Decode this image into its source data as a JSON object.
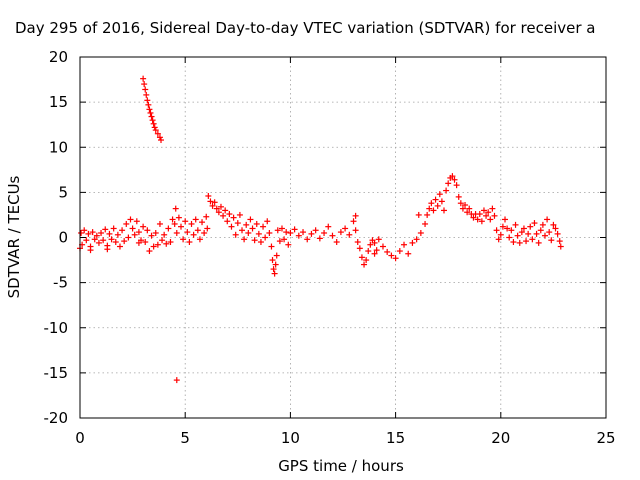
{
  "chart_data": {
    "type": "scatter",
    "title": "Day 295 of 2016, Sidereal Day-to-day VTEC variation (SDTVAR) for receiver a",
    "xlabel": "GPS time / hours",
    "ylabel": "SDTVAR / TECUs",
    "xlim": [
      0,
      25
    ],
    "ylim": [
      -20,
      20
    ],
    "xticks": [
      0,
      5,
      10,
      15,
      20,
      25
    ],
    "yticks": [
      -20,
      -15,
      -10,
      -5,
      0,
      5,
      10,
      15,
      20
    ],
    "xtick_labels": [
      "0",
      "5",
      "10",
      "15",
      "20",
      "25"
    ],
    "ytick_labels": [
      "-20",
      "-15",
      "-10",
      "-5",
      "0",
      "5",
      "10",
      "15",
      "20"
    ],
    "grid": true,
    "marker": "+",
    "series_color": "#ff0000",
    "series": [
      {
        "points": [
          [
            0.0,
            -1.2
          ],
          [
            0.05,
            0.5
          ],
          [
            0.1,
            -0.8
          ],
          [
            0.2,
            0.8
          ],
          [
            0.3,
            -0.3
          ],
          [
            0.4,
            0.4
          ],
          [
            0.5,
            -1.0
          ],
          [
            0.6,
            0.6
          ],
          [
            0.7,
            -0.2
          ],
          [
            0.8,
            0.2
          ],
          [
            0.9,
            -0.6
          ],
          [
            1.0,
            0.5
          ],
          [
            1.1,
            -0.3
          ],
          [
            1.2,
            0.9
          ],
          [
            1.3,
            -0.9
          ],
          [
            1.4,
            0.4
          ],
          [
            1.5,
            -0.2
          ],
          [
            1.6,
            1.0
          ],
          [
            1.7,
            -0.5
          ],
          [
            1.8,
            0.3
          ],
          [
            1.9,
            -1.0
          ],
          [
            2.0,
            0.8
          ],
          [
            2.1,
            -0.4
          ],
          [
            2.2,
            1.5
          ],
          [
            2.3,
            0.0
          ],
          [
            2.4,
            2.0
          ],
          [
            2.5,
            1.0
          ],
          [
            2.6,
            0.3
          ],
          [
            2.7,
            1.8
          ],
          [
            2.8,
            0.6
          ],
          [
            2.9,
            -0.3
          ],
          [
            3.0,
            1.2
          ],
          [
            3.1,
            -0.5
          ],
          [
            3.2,
            0.8
          ],
          [
            3.3,
            -1.5
          ],
          [
            3.4,
            0.2
          ],
          [
            3.5,
            -1.0
          ],
          [
            3.6,
            0.5
          ],
          [
            3.7,
            -0.8
          ],
          [
            3.8,
            1.5
          ],
          [
            3.9,
            -0.3
          ],
          [
            4.0,
            0.3
          ],
          [
            4.1,
            -0.7
          ],
          [
            4.2,
            1.0
          ],
          [
            4.3,
            -0.5
          ],
          [
            4.4,
            2.0
          ],
          [
            4.5,
            1.5
          ],
          [
            4.6,
            0.5
          ],
          [
            4.7,
            2.2
          ],
          [
            4.8,
            1.2
          ],
          [
            4.9,
            -0.2
          ],
          [
            5.0,
            1.8
          ],
          [
            5.1,
            0.6
          ],
          [
            5.2,
            -0.5
          ],
          [
            5.3,
            1.5
          ],
          [
            5.4,
            0.3
          ],
          [
            5.5,
            2.0
          ],
          [
            5.6,
            0.8
          ],
          [
            5.7,
            -0.2
          ],
          [
            5.8,
            1.7
          ],
          [
            5.9,
            0.5
          ],
          [
            6.0,
            2.3
          ],
          [
            6.05,
            1.0
          ],
          [
            6.1,
            4.6
          ],
          [
            6.2,
            4.0
          ],
          [
            6.3,
            3.5
          ],
          [
            6.4,
            3.9
          ],
          [
            6.5,
            3.2
          ],
          [
            6.6,
            2.8
          ],
          [
            6.7,
            3.4
          ],
          [
            6.8,
            2.4
          ],
          [
            6.9,
            3.0
          ],
          [
            7.0,
            1.8
          ],
          [
            7.1,
            2.6
          ],
          [
            7.2,
            1.2
          ],
          [
            7.3,
            2.2
          ],
          [
            7.4,
            0.3
          ],
          [
            7.5,
            1.6
          ],
          [
            7.6,
            2.5
          ],
          [
            7.7,
            0.8
          ],
          [
            7.8,
            -0.2
          ],
          [
            7.9,
            1.4
          ],
          [
            8.0,
            0.5
          ],
          [
            8.1,
            2.0
          ],
          [
            8.2,
            1.0
          ],
          [
            8.3,
            -0.3
          ],
          [
            8.4,
            1.5
          ],
          [
            8.5,
            0.4
          ],
          [
            8.6,
            -0.5
          ],
          [
            8.7,
            1.2
          ],
          [
            8.8,
            0.0
          ],
          [
            8.9,
            1.8
          ],
          [
            9.0,
            0.5
          ],
          [
            9.1,
            -1.0
          ],
          [
            9.15,
            -2.5
          ],
          [
            9.2,
            -3.5
          ],
          [
            9.25,
            -4.0
          ],
          [
            9.3,
            -3.0
          ],
          [
            9.35,
            -2.0
          ],
          [
            9.4,
            0.8
          ],
          [
            9.5,
            -0.4
          ],
          [
            9.6,
            1.0
          ],
          [
            9.7,
            -0.2
          ],
          [
            9.8,
            0.6
          ],
          [
            9.9,
            -0.8
          ],
          [
            10.0,
            0.5
          ],
          [
            10.2,
            0.9
          ],
          [
            10.4,
            0.2
          ],
          [
            10.6,
            0.6
          ],
          [
            10.8,
            -0.2
          ],
          [
            11.0,
            0.4
          ],
          [
            11.2,
            0.8
          ],
          [
            11.4,
            -0.1
          ],
          [
            11.6,
            0.5
          ],
          [
            11.8,
            1.2
          ],
          [
            12.0,
            0.2
          ],
          [
            12.2,
            -0.5
          ],
          [
            12.4,
            0.6
          ],
          [
            12.6,
            1.0
          ],
          [
            12.8,
            0.3
          ],
          [
            13.0,
            1.8
          ],
          [
            13.1,
            0.8
          ],
          [
            13.2,
            -0.5
          ],
          [
            13.3,
            -1.2
          ],
          [
            13.4,
            -2.2
          ],
          [
            13.5,
            -3.0
          ],
          [
            13.6,
            -2.5
          ],
          [
            13.7,
            -1.5
          ],
          [
            13.8,
            -0.8
          ],
          [
            13.9,
            -0.3
          ],
          [
            14.0,
            -0.6
          ],
          [
            14.1,
            -1.4
          ],
          [
            14.2,
            -0.2
          ],
          [
            14.4,
            -1.0
          ],
          [
            14.6,
            -1.6
          ],
          [
            14.8,
            -2.0
          ],
          [
            15.0,
            -2.3
          ],
          [
            15.2,
            -1.5
          ],
          [
            15.4,
            -0.8
          ],
          [
            15.6,
            -1.8
          ],
          [
            15.8,
            -0.6
          ],
          [
            16.0,
            -0.2
          ],
          [
            16.2,
            0.5
          ],
          [
            16.4,
            1.5
          ],
          [
            16.5,
            2.5
          ],
          [
            16.6,
            3.2
          ],
          [
            16.7,
            3.8
          ],
          [
            16.8,
            3.0
          ],
          [
            16.9,
            4.2
          ],
          [
            17.0,
            3.5
          ],
          [
            17.1,
            4.8
          ],
          [
            17.2,
            4.0
          ],
          [
            17.3,
            3.0
          ],
          [
            17.4,
            5.2
          ],
          [
            17.5,
            6.0
          ],
          [
            17.6,
            6.6
          ],
          [
            17.7,
            6.8
          ],
          [
            17.8,
            6.4
          ],
          [
            17.9,
            5.8
          ],
          [
            18.0,
            4.5
          ],
          [
            18.1,
            3.8
          ],
          [
            18.2,
            3.2
          ],
          [
            18.3,
            3.6
          ],
          [
            18.4,
            2.8
          ],
          [
            18.5,
            3.2
          ],
          [
            18.6,
            2.6
          ],
          [
            18.7,
            2.2
          ],
          [
            18.8,
            2.6
          ],
          [
            18.9,
            2.0
          ],
          [
            19.0,
            2.6
          ],
          [
            19.1,
            1.8
          ],
          [
            19.2,
            3.0
          ],
          [
            19.3,
            2.4
          ],
          [
            19.4,
            2.8
          ],
          [
            19.5,
            2.0
          ],
          [
            19.6,
            3.2
          ],
          [
            19.7,
            2.4
          ],
          [
            19.8,
            0.8
          ],
          [
            19.9,
            -0.2
          ],
          [
            20.0,
            0.3
          ],
          [
            20.1,
            1.2
          ],
          [
            20.2,
            2.0
          ],
          [
            20.3,
            1.0
          ],
          [
            20.4,
            0.0
          ],
          [
            20.5,
            0.8
          ],
          [
            20.6,
            -0.5
          ],
          [
            20.7,
            1.4
          ],
          [
            20.8,
            0.2
          ],
          [
            20.9,
            -0.6
          ],
          [
            21.0,
            0.6
          ],
          [
            21.1,
            1.0
          ],
          [
            21.2,
            -0.4
          ],
          [
            21.3,
            0.4
          ],
          [
            21.4,
            1.2
          ],
          [
            21.5,
            -0.2
          ],
          [
            21.6,
            1.6
          ],
          [
            21.7,
            0.4
          ],
          [
            21.8,
            -0.6
          ],
          [
            21.9,
            0.8
          ],
          [
            22.0,
            1.4
          ],
          [
            22.1,
            0.2
          ],
          [
            22.2,
            2.0
          ],
          [
            22.3,
            0.6
          ],
          [
            22.4,
            -0.3
          ],
          [
            22.5,
            1.4
          ],
          [
            22.6,
            1.0
          ],
          [
            22.7,
            0.4
          ],
          [
            22.8,
            -0.4
          ],
          [
            22.85,
            -1.0
          ],
          [
            3.0,
            17.6
          ],
          [
            3.05,
            17.0
          ],
          [
            3.1,
            16.4
          ],
          [
            3.15,
            15.8
          ],
          [
            3.2,
            15.2
          ],
          [
            3.25,
            14.7
          ],
          [
            3.3,
            14.2
          ],
          [
            3.35,
            13.8
          ],
          [
            3.4,
            13.4
          ],
          [
            3.45,
            13.0
          ],
          [
            3.5,
            12.6
          ],
          [
            3.55,
            12.2
          ],
          [
            3.6,
            11.9
          ],
          [
            3.7,
            11.5
          ],
          [
            3.8,
            11.1
          ],
          [
            3.85,
            10.8
          ],
          [
            4.6,
            -15.8
          ],
          [
            4.55,
            3.2
          ],
          [
            2.8,
            -0.6
          ],
          [
            1.3,
            -1.3
          ],
          [
            0.5,
            -1.4
          ],
          [
            13.1,
            2.4
          ],
          [
            14.0,
            -1.8
          ],
          [
            16.1,
            2.5
          ]
        ]
      }
    ]
  }
}
